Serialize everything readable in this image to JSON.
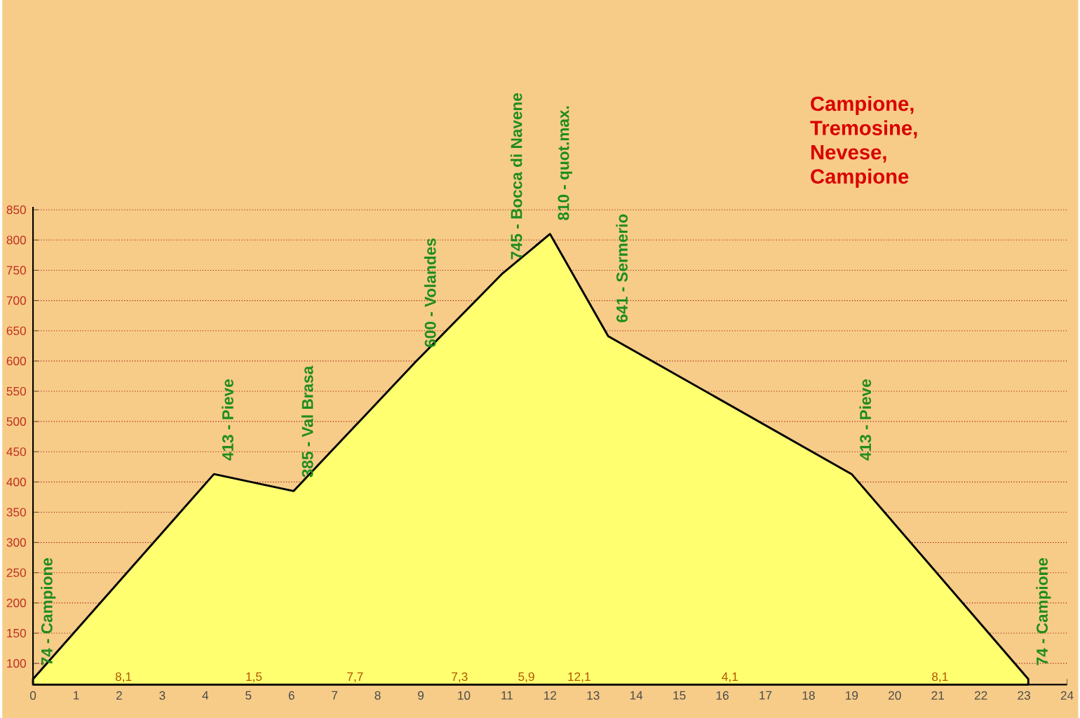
{
  "chart_data": {
    "type": "area",
    "title": "Campione, Tremosine, Nevese, Campione",
    "x": [
      0,
      4.2,
      6.05,
      8.9,
      10.9,
      12,
      13.35,
      19,
      23.1
    ],
    "values": [
      74,
      413,
      385,
      600,
      745,
      810,
      641,
      413,
      74
    ],
    "color": "#ffff70",
    "xlim": [
      0,
      24
    ],
    "xticks": [
      0,
      1,
      2,
      3,
      4,
      5,
      6,
      7,
      8,
      9,
      10,
      11,
      12,
      13,
      14,
      15,
      16,
      17,
      18,
      19,
      20,
      21,
      22,
      23,
      24
    ],
    "ylim": [
      65,
      855
    ],
    "yticks": [
      100,
      150,
      200,
      250,
      300,
      350,
      400,
      450,
      500,
      550,
      600,
      650,
      700,
      750,
      800,
      850
    ],
    "grid": "y",
    "annotations": [
      {
        "text": "74 - Campione",
        "x": 0,
        "y": 74
      },
      {
        "text": "413 - Pieve",
        "x": 4.2,
        "y": 413
      },
      {
        "text": "385 - Val Brasa",
        "x": 6.05,
        "y": 385
      },
      {
        "text": "600 - Volandes",
        "x": 8.9,
        "y": 600
      },
      {
        "text": "745 - Bocca di Navene",
        "x": 10.9,
        "y": 745
      },
      {
        "text": "810 - quot.max.",
        "x": 12,
        "y": 810
      },
      {
        "text": "641 - Sermerio",
        "x": 13.35,
        "y": 641
      },
      {
        "text": "413 - Pieve",
        "x": 19,
        "y": 413
      },
      {
        "text": "74 - Campione",
        "x": 23.1,
        "y": 74
      },
      "8,1",
      "1,5",
      "7,7",
      "7,3",
      "5,9",
      "12,1",
      "4,1",
      "8,1"
    ]
  }
}
